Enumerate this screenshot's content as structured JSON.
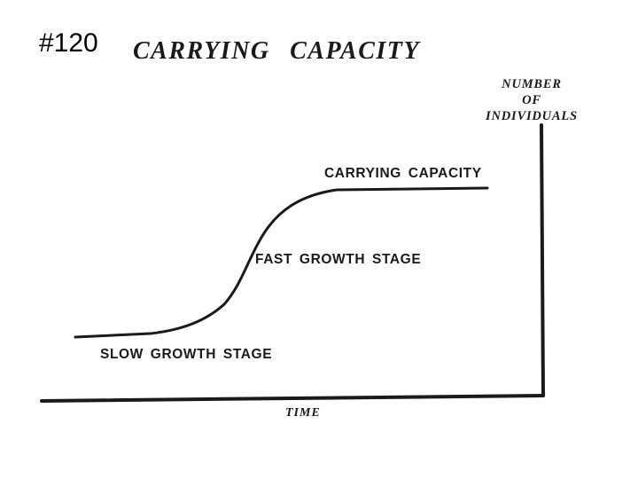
{
  "slide_number": "#120",
  "title": "CARRYING CAPACITY",
  "y_axis": {
    "label_lines": [
      "NUMBER",
      "OF",
      "INDIVIDUALS"
    ]
  },
  "x_axis": {
    "label": "TIME"
  },
  "stages": {
    "carrying_capacity": "CARRYING CAPACITY",
    "fast_growth": "FAST GROWTH STAGE",
    "slow_growth": "SLOW GROWTH STAGE"
  },
  "colors": {
    "ink": "#1a1a1a",
    "background": "#ffffff"
  }
}
